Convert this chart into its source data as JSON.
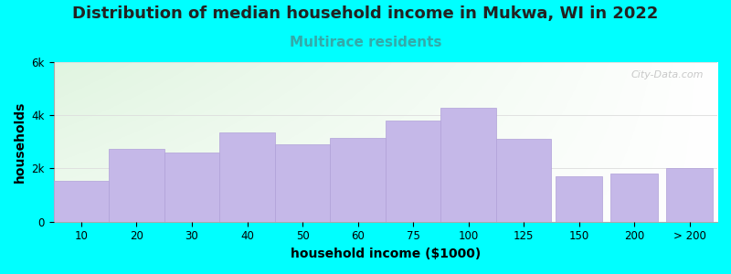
{
  "title": "Distribution of median household income in Mukwa, WI in 2022",
  "subtitle": "Multirace residents",
  "xlabel": "household income ($1000)",
  "ylabel": "households",
  "background_outer": "#00FFFF",
  "background_inner_left": "#d8f0d8",
  "background_inner_right": "#f8f8f8",
  "bar_color": "#c5b8e8",
  "bar_edge_color": "#b0a0d8",
  "categories": [
    "10",
    "20",
    "30",
    "40",
    "50",
    "60",
    "75",
    "100",
    "125",
    "150",
    "200",
    "> 200"
  ],
  "values": [
    1550,
    2750,
    2600,
    3350,
    2900,
    3150,
    3800,
    4300,
    3100,
    1700,
    1800,
    2000
  ],
  "bar_widths": [
    1,
    1,
    1,
    1,
    1,
    1,
    1,
    1,
    1,
    1,
    1,
    1
  ],
  "bar_lefts": [
    0,
    1,
    2,
    3,
    4,
    5,
    6,
    7,
    8,
    9,
    10,
    11
  ],
  "isolated_bars": [
    9,
    10,
    11
  ],
  "ylim": [
    0,
    6000
  ],
  "yticks": [
    0,
    2000,
    4000,
    6000
  ],
  "ytick_labels": [
    "0",
    "2k",
    "4k",
    "6k"
  ],
  "title_fontsize": 13,
  "subtitle_fontsize": 11,
  "subtitle_color": "#33aaaa",
  "axis_label_fontsize": 10,
  "tick_fontsize": 8.5,
  "watermark": "City-Data.com"
}
